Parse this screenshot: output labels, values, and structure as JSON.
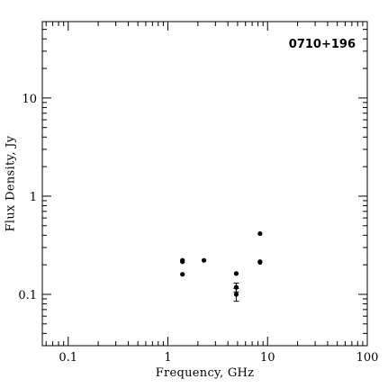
{
  "chart_data": {
    "type": "scatter",
    "title": "",
    "source_label": "0710+196",
    "xlabel": "Frequency, GHz",
    "ylabel": "Flux Density, Jy",
    "xscale": "log",
    "yscale": "log",
    "xlim": [
      0.055,
      100
    ],
    "ylim": [
      0.03,
      60
    ],
    "x_tick_labels": [
      {
        "value": 0.1,
        "label": "0.1"
      },
      {
        "value": 1,
        "label": "1"
      },
      {
        "value": 10,
        "label": "10"
      },
      {
        "value": 100,
        "label": "100"
      }
    ],
    "y_tick_labels": [
      {
        "value": 0.1,
        "label": "0.1"
      },
      {
        "value": 1,
        "label": "1"
      },
      {
        "value": 10,
        "label": "10"
      }
    ],
    "grid": false,
    "legend": "none",
    "series": [
      {
        "points": [
          {
            "x": 1.4,
            "y": 0.215
          },
          {
            "x": 1.4,
            "y": 0.222
          },
          {
            "x": 1.4,
            "y": 0.16
          },
          {
            "x": 2.3,
            "y": 0.222
          },
          {
            "x": 4.85,
            "y": 0.163
          },
          {
            "x": 4.85,
            "y": 0.118,
            "yerr": 0.012
          },
          {
            "x": 4.85,
            "y": 0.1,
            "yerr": 0.015
          },
          {
            "x": 8.4,
            "y": 0.415
          },
          {
            "x": 8.4,
            "y": 0.215
          },
          {
            "x": 8.4,
            "y": 0.212
          }
        ]
      }
    ]
  }
}
